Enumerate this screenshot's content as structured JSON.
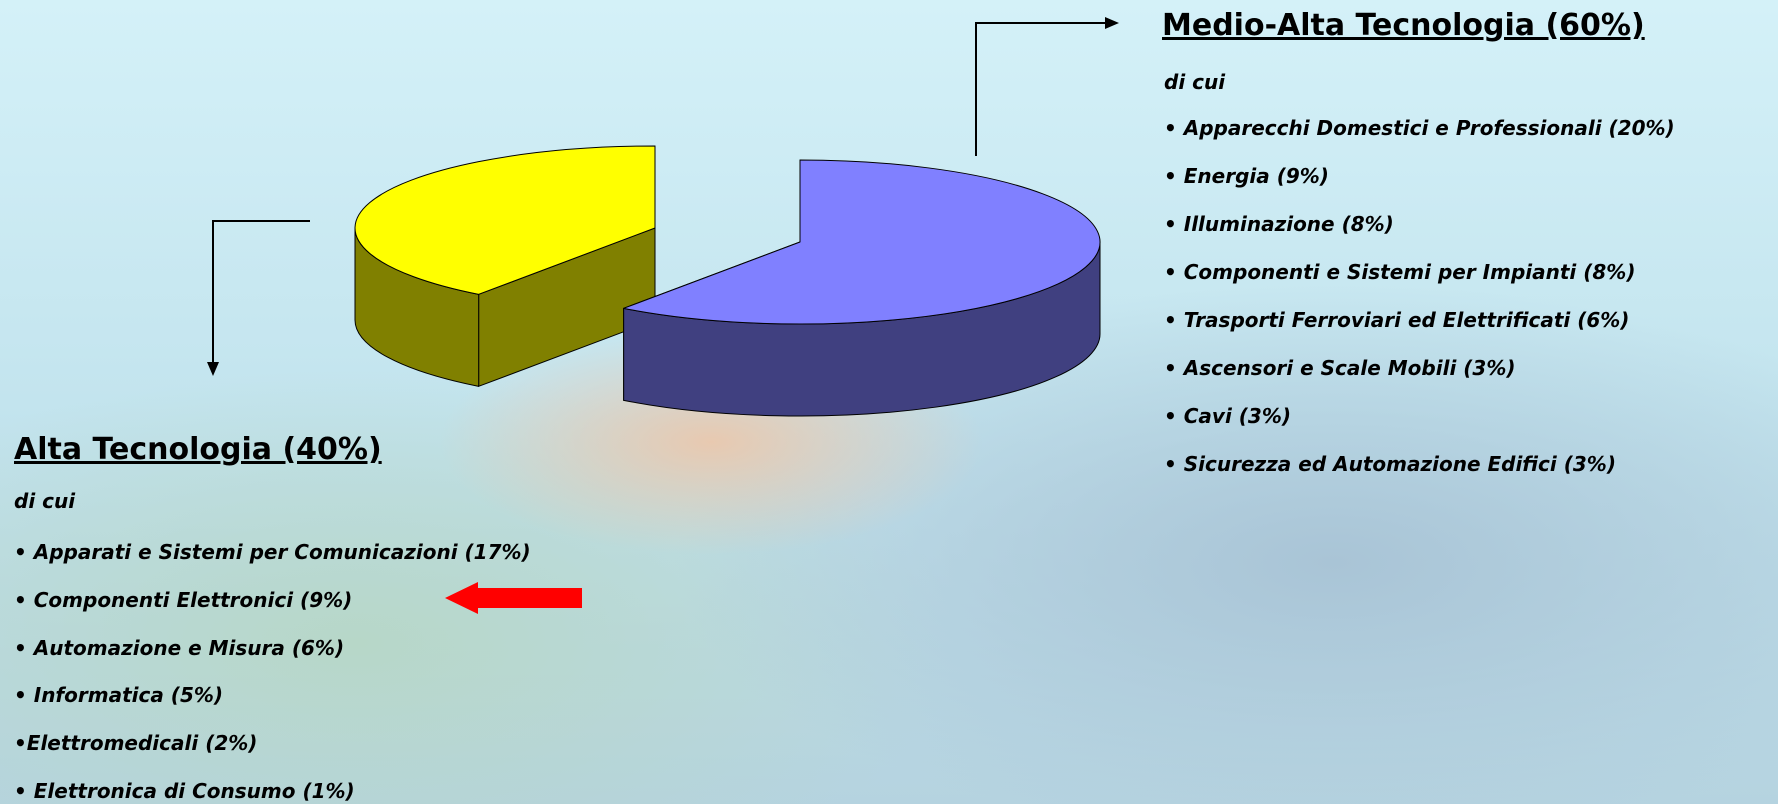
{
  "chart_data": {
    "type": "pie",
    "values": [
      40,
      60
    ],
    "colors": [
      "#ffff00",
      "#8080ff"
    ]
  },
  "alta": {
    "title": "Alta Tecnologia (40%)",
    "subtitle": "di cui",
    "items": [
      "• Apparati e Sistemi per Comunicazioni (17%)",
      "• Componenti Elettronici (9%)",
      "• Automazione e Misura (6%)",
      "• Informatica (5%)",
      "•Elettromedicali (2%)",
      "• Elettronica di Consumo (1%)"
    ]
  },
  "medio": {
    "title": "Medio-Alta Tecnologia (60%)",
    "subtitle": "di cui",
    "items": [
      "• Apparecchi Domestici e Professionali (20%)",
      "• Energia (9%)",
      "• Illuminazione (8%)",
      "• Componenti e Sistemi per Impianti (8%)",
      "• Trasporti Ferroviari ed Elettrificati (6%)",
      "• Ascensori e Scale Mobili (3%)",
      "• Cavi (3%)",
      "• Sicurezza ed Automazione Edifici (3%)"
    ]
  }
}
